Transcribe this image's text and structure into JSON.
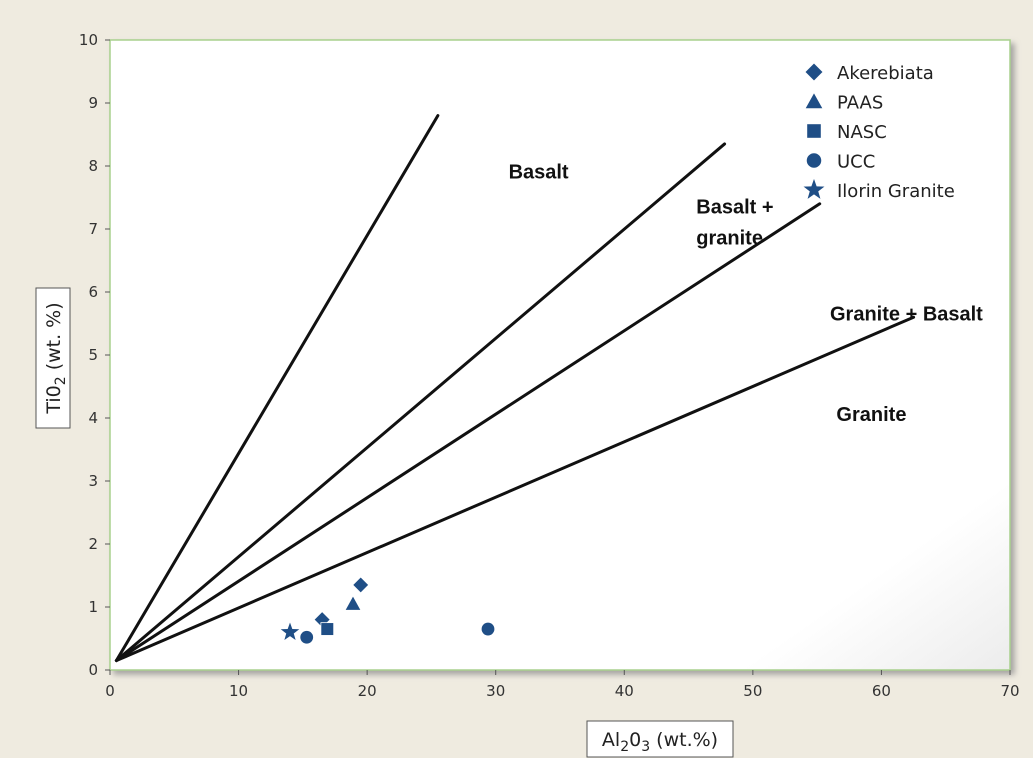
{
  "chart_data": {
    "type": "scatter",
    "xlabel": {
      "main": "Al",
      "sub1": "2",
      "mid": "0",
      "sub2": "3",
      "tail": " (wt.%)"
    },
    "ylabel": {
      "main": "Ti0",
      "sub1": "2",
      "tail": " (wt. %)"
    },
    "xlim": [
      0,
      70
    ],
    "ylim": [
      0,
      10
    ],
    "x_ticks": [
      "0",
      "10",
      "20",
      "30",
      "40",
      "50",
      "60",
      "70"
    ],
    "y_ticks": [
      "0",
      "1",
      "2",
      "3",
      "4",
      "5",
      "6",
      "7",
      "8",
      "9",
      "10"
    ],
    "grid": false,
    "legend_position": "top-right",
    "colors": {
      "marker": "#1f4e86",
      "line": "#111111",
      "plot_border": "#a8d08d"
    },
    "series": [
      {
        "name": "Akerebiata",
        "marker": "diamond",
        "points": [
          [
            16.5,
            0.8
          ],
          [
            19.5,
            1.35
          ]
        ]
      },
      {
        "name": "PAAS",
        "marker": "triangle",
        "points": [
          [
            18.9,
            1.05
          ]
        ]
      },
      {
        "name": "NASC",
        "marker": "square",
        "points": [
          [
            16.9,
            0.65
          ]
        ]
      },
      {
        "name": "UCC",
        "marker": "circle",
        "points": [
          [
            15.3,
            0.52
          ],
          [
            29.4,
            0.65
          ]
        ]
      },
      {
        "name": "Ilorin Granite",
        "marker": "star",
        "points": [
          [
            14.0,
            0.6
          ]
        ]
      }
    ],
    "boundary_lines": [
      {
        "from": [
          0.5,
          0.15
        ],
        "to": [
          25.5,
          8.8
        ]
      },
      {
        "from": [
          0.5,
          0.15
        ],
        "to": [
          47.8,
          8.35
        ]
      },
      {
        "from": [
          0.5,
          0.15
        ],
        "to": [
          55.2,
          7.4
        ]
      },
      {
        "from": [
          0.5,
          0.15
        ],
        "to": [
          62.5,
          5.6
        ]
      }
    ],
    "region_labels": [
      {
        "lines": [
          "Basalt"
        ],
        "at": [
          31,
          7.8
        ]
      },
      {
        "lines": [
          "Basalt +",
          "granite"
        ],
        "at": [
          45.6,
          7.25
        ]
      },
      {
        "lines": [
          "Granite + Basalt"
        ],
        "at": [
          56,
          5.55
        ]
      },
      {
        "lines": [
          "Granite"
        ],
        "at": [
          56.5,
          3.95
        ]
      }
    ]
  }
}
